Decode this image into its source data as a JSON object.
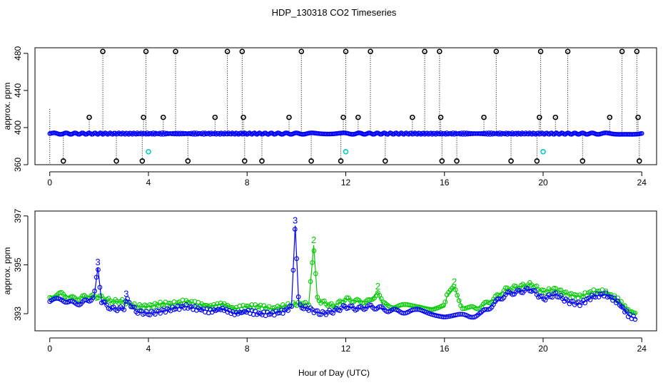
{
  "title": "HDP_130318  CO2 Timeseries",
  "xlabel": "Hour of Day (UTC)",
  "colors": {
    "series_3": "#0000ff",
    "series_2": "#00cc00",
    "outlier": "#000000",
    "flagged": "#00cccc",
    "droplines": "#000000"
  },
  "chart_data": [
    {
      "type": "scatter",
      "name": "top-panel",
      "ylabel": "approx. ppm",
      "xlim": [
        -0.6,
        24.6
      ],
      "ylim": [
        360,
        486
      ],
      "xticks": [
        "0",
        "4",
        "8",
        "12",
        "16",
        "20",
        "24"
      ],
      "xtick_values": [
        0,
        4,
        8,
        12,
        16,
        20,
        24
      ],
      "yticks": [
        "360",
        "400",
        "440",
        "480"
      ],
      "ytick_values": [
        360,
        400,
        440,
        480
      ],
      "baseline": 393.5,
      "outliers_high": [
        2.15,
        3.9,
        5.1,
        7.2,
        7.8,
        10.2,
        12.0,
        13.0,
        15.2,
        15.8,
        18.1,
        19.9,
        21.0,
        23.2,
        23.8
      ],
      "outliers_mid": [
        1.6,
        3.8,
        4.6,
        6.7,
        7.85,
        9.7,
        11.9,
        12.5,
        14.7,
        15.85,
        17.6,
        19.85,
        20.5,
        22.7,
        23.85
      ],
      "outliers_low": [
        0.55,
        2.7,
        3.75,
        5.6,
        7.9,
        8.6,
        10.6,
        11.8,
        13.6,
        15.9,
        16.5,
        18.7,
        19.75,
        21.6,
        23.9
      ],
      "flagged_points": [
        {
          "x": 4.0,
          "y": 374
        },
        {
          "x": 12.0,
          "y": 374
        },
        {
          "x": 20.0,
          "y": 374
        }
      ]
    },
    {
      "type": "scatter",
      "name": "bottom-panel",
      "ylabel": "approx. ppm",
      "xlim": [
        -0.6,
        24.6
      ],
      "ylim": [
        392.3,
        397.2
      ],
      "xticks": [
        "0",
        "4",
        "8",
        "12",
        "16",
        "20",
        "24"
      ],
      "xtick_values": [
        0,
        4,
        8,
        12,
        16,
        20,
        24
      ],
      "yticks": [
        "393",
        "395",
        "397"
      ],
      "ytick_values": [
        393,
        395,
        397
      ],
      "series": [
        {
          "label": "3",
          "color": "#0000ff",
          "x": [
            0,
            0.5,
            1.0,
            1.5,
            1.8,
            1.95,
            2.1,
            2.5,
            3.0,
            3.1,
            3.5,
            4.0,
            4.5,
            5.0,
            5.5,
            6.0,
            6.5,
            7.0,
            7.5,
            8.0,
            8.5,
            9.0,
            9.5,
            9.8,
            9.95,
            10.1,
            10.5,
            11.0,
            11.5,
            12.0,
            12.5,
            13.0,
            13.5,
            14.0,
            14.5,
            15.0,
            15.5,
            16.0,
            16.5,
            17.0,
            17.5,
            18.0,
            18.5,
            19.0,
            19.5,
            20.0,
            20.5,
            21.0,
            21.5,
            22.0,
            22.5,
            23.0,
            23.5,
            23.8
          ],
          "y": [
            393.5,
            393.6,
            393.4,
            393.5,
            393.7,
            394.9,
            393.5,
            393.2,
            393.2,
            393.6,
            393.1,
            393.0,
            393.1,
            393.2,
            393.3,
            393.2,
            393.1,
            393.2,
            393.0,
            393.1,
            393.0,
            393.0,
            393.1,
            393.3,
            396.6,
            393.3,
            393.2,
            393.0,
            393.1,
            393.3,
            393.2,
            393.3,
            393.2,
            393.1,
            393.1,
            393.1,
            393.0,
            392.9,
            392.9,
            392.9,
            393.0,
            393.4,
            393.8,
            393.9,
            394.0,
            393.6,
            393.8,
            393.5,
            393.4,
            393.7,
            393.8,
            393.5,
            392.9,
            392.8
          ]
        },
        {
          "label": "2",
          "color": "#00cc00",
          "x": [
            0,
            0.5,
            1.0,
            1.5,
            2.0,
            2.5,
            3.0,
            3.5,
            4.0,
            4.5,
            5.0,
            5.5,
            6.0,
            6.5,
            7.0,
            7.5,
            8.0,
            8.5,
            9.0,
            9.5,
            10.0,
            10.5,
            10.7,
            10.85,
            11.0,
            11.5,
            12.0,
            12.5,
            13.0,
            13.3,
            13.5,
            14.0,
            14.5,
            15.0,
            15.5,
            16.0,
            16.1,
            16.4,
            16.7,
            17.0,
            17.5,
            18.0,
            18.5,
            19.0,
            19.5,
            20.0,
            20.5,
            21.0,
            21.5,
            22.0,
            22.5,
            23.0,
            23.5,
            23.8
          ],
          "y": [
            393.7,
            393.8,
            393.6,
            393.7,
            393.7,
            393.5,
            393.5,
            393.3,
            393.3,
            393.4,
            393.4,
            393.5,
            393.4,
            393.3,
            393.4,
            393.2,
            393.3,
            393.3,
            393.2,
            393.3,
            393.4,
            393.4,
            395.8,
            393.6,
            393.5,
            393.3,
            393.6,
            393.5,
            393.5,
            393.9,
            393.4,
            393.3,
            393.3,
            393.3,
            393.2,
            393.3,
            393.7,
            394.1,
            393.3,
            393.2,
            393.3,
            393.6,
            394.0,
            394.1,
            394.2,
            393.9,
            394.0,
            393.8,
            393.7,
            393.9,
            393.9,
            393.6,
            393.1,
            393.0
          ]
        }
      ]
    }
  ]
}
